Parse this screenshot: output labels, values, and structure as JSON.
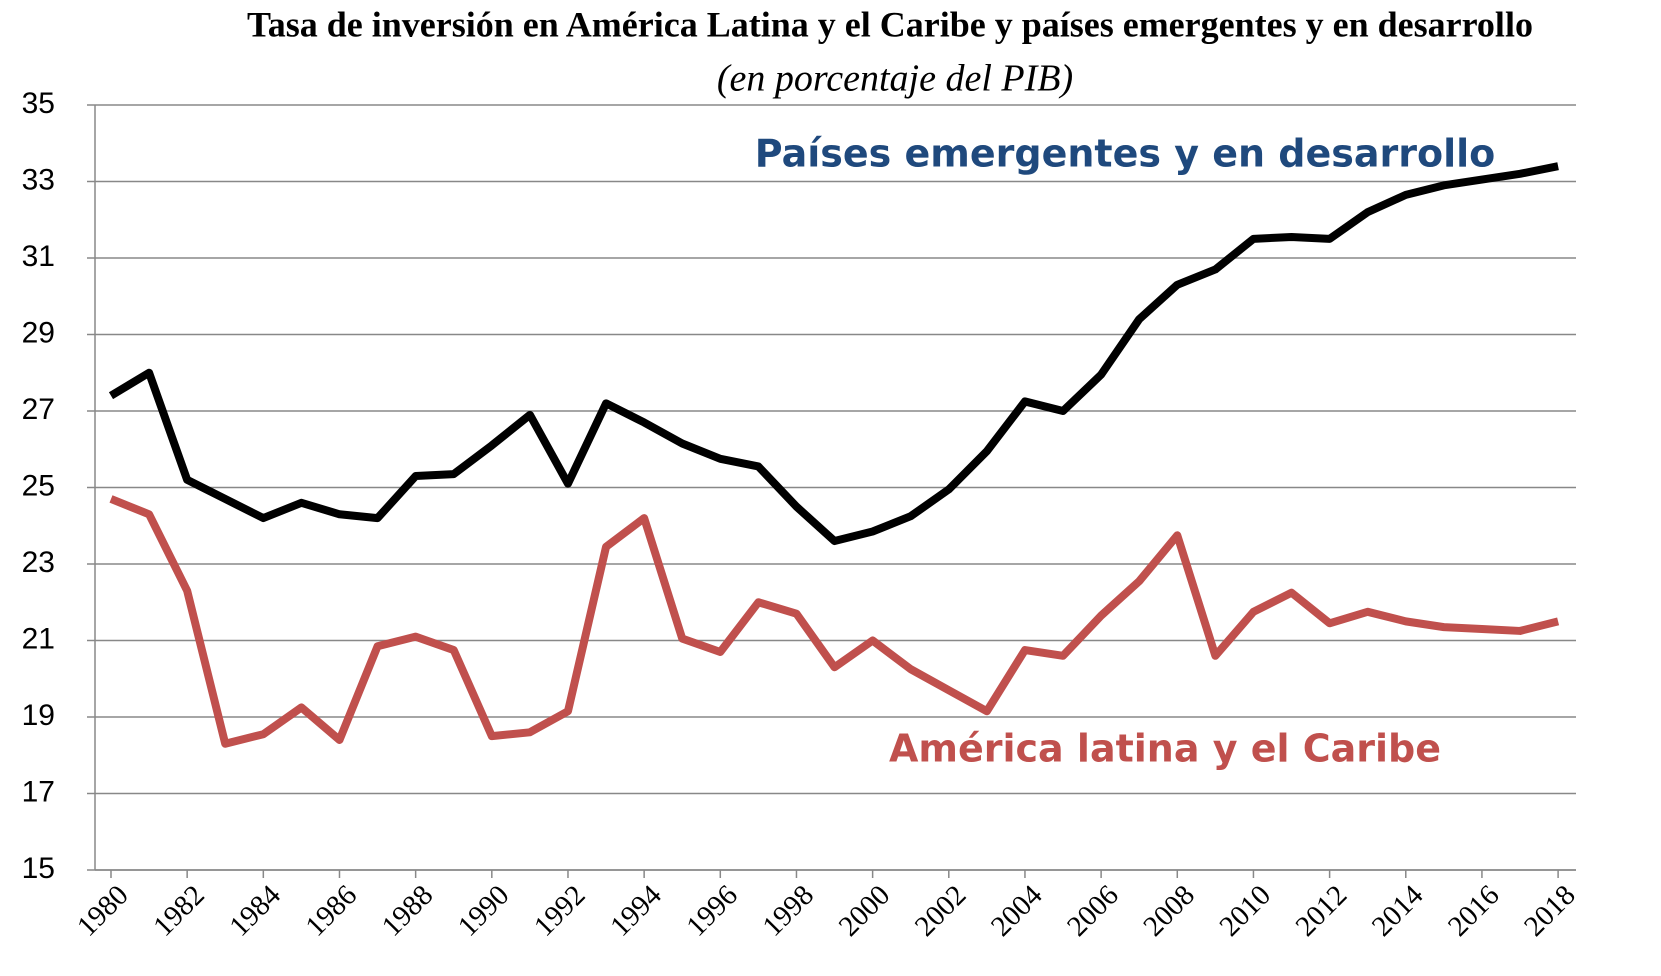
{
  "chart_data": {
    "type": "line",
    "title": "Tasa de inversión en América Latina y el Caribe y países emergentes y en desarrollo",
    "subtitle": "(en porcentaje del PIB)",
    "x": [
      1980,
      1981,
      1982,
      1983,
      1984,
      1985,
      1986,
      1987,
      1988,
      1989,
      1990,
      1991,
      1992,
      1993,
      1994,
      1995,
      1996,
      1997,
      1998,
      1999,
      2000,
      2001,
      2002,
      2003,
      2004,
      2005,
      2006,
      2007,
      2008,
      2009,
      2010,
      2011,
      2012,
      2013,
      2014,
      2015,
      2016,
      2017,
      2018
    ],
    "series": [
      {
        "name": "Países emergentes y en desarrollo",
        "color": "#000000",
        "label_color": "#1f497d",
        "values": [
          27.4,
          28.0,
          25.2,
          24.7,
          24.2,
          24.6,
          24.3,
          24.2,
          25.3,
          25.35,
          26.1,
          26.9,
          25.1,
          27.2,
          26.7,
          26.15,
          25.75,
          25.55,
          24.5,
          23.6,
          23.85,
          24.25,
          24.95,
          25.95,
          27.25,
          27.0,
          27.95,
          29.4,
          30.3,
          30.7,
          31.5,
          31.55,
          31.5,
          32.2,
          32.65,
          32.9,
          33.05,
          33.2,
          33.4
        ]
      },
      {
        "name": "América latina y el Caribe",
        "color": "#c0504d",
        "label_color": "#c0504d",
        "values": [
          24.7,
          24.3,
          22.3,
          18.3,
          18.55,
          19.25,
          18.4,
          20.85,
          21.1,
          20.75,
          18.5,
          18.6,
          19.15,
          23.45,
          24.2,
          21.05,
          20.7,
          22.0,
          21.7,
          20.3,
          21.0,
          20.25,
          19.7,
          19.15,
          20.75,
          20.6,
          21.65,
          22.55,
          23.75,
          20.6,
          21.75,
          22.25,
          21.45,
          21.75,
          21.5,
          21.35,
          21.3,
          21.25,
          21.5
        ]
      }
    ],
    "xlim": [
      1979.58,
      2018.47
    ],
    "xticks": [
      1980,
      1982,
      1984,
      1986,
      1988,
      1990,
      1992,
      1994,
      1996,
      1998,
      2000,
      2002,
      2004,
      2006,
      2008,
      2010,
      2012,
      2014,
      2016,
      2018
    ],
    "ylim": [
      15,
      35
    ],
    "yticks": [
      15,
      17,
      19,
      21,
      23,
      25,
      27,
      29,
      31,
      33,
      35
    ],
    "grid": true
  }
}
